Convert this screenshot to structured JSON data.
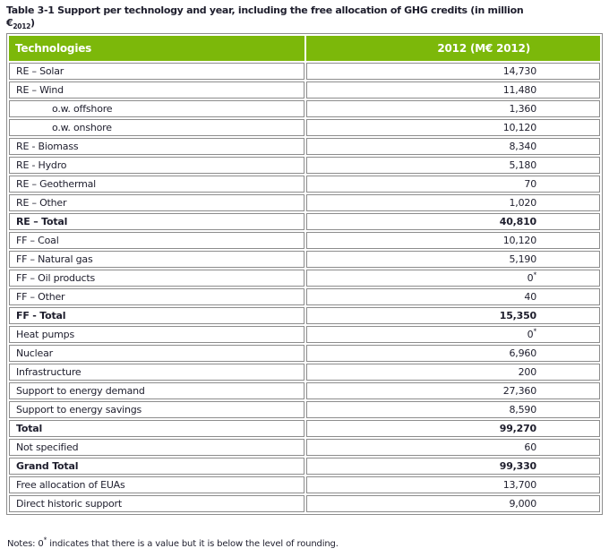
{
  "caption": {
    "line1": "Table 3-1 Support per technology and year, including the free allocation of GHG credits (in million",
    "euro": "€",
    "euro_subscript": "2012",
    "close_paren": ")"
  },
  "table": {
    "columns": [
      "Technologies",
      "2012 (M€ 2012)"
    ],
    "rows": [
      {
        "label": "RE – Solar",
        "value": "14,730"
      },
      {
        "label": "RE – Wind",
        "value": "11,480"
      },
      {
        "label": "o.w. offshore",
        "value": "1,360"
      },
      {
        "label": "o.w. onshore",
        "value": "10,120"
      },
      {
        "label": "RE - Biomass",
        "value": "8,340"
      },
      {
        "label": "RE - Hydro",
        "value": "5,180"
      },
      {
        "label": "RE – Geothermal",
        "value": "70"
      },
      {
        "label": "RE – Other",
        "value": "1,020"
      },
      {
        "label": "RE – Total",
        "value": "40,810"
      },
      {
        "label": "FF – Coal",
        "value": "10,120"
      },
      {
        "label": "FF – Natural gas",
        "value": "5,190"
      },
      {
        "label": "FF – Oil products",
        "value": "0",
        "sup": "*"
      },
      {
        "label": "FF – Other",
        "value": "40"
      },
      {
        "label": "FF - Total",
        "value": "15,350"
      },
      {
        "label": "Heat pumps",
        "value": "0",
        "sup": "*"
      },
      {
        "label": "Nuclear",
        "value": "6,960"
      },
      {
        "label": "Infrastructure",
        "value": "200"
      },
      {
        "label": "Support to energy demand",
        "value": "27,360"
      },
      {
        "label": "Support to energy savings",
        "value": "8,590"
      },
      {
        "label": "Total",
        "value": "99,270"
      },
      {
        "label": "Not specified",
        "value": "60"
      },
      {
        "label": "Grand Total",
        "value": "99,330"
      },
      {
        "label": "Free allocation of EUAs",
        "value": "13,700"
      },
      {
        "label": "Direct historic support",
        "value": "9,000"
      }
    ]
  },
  "notes": {
    "prefix": "Notes: 0",
    "sup": "*",
    "text": " indicates that there is a value but it is below the level of rounding."
  },
  "colors": {
    "header_green": "#7cb80a",
    "border_gray": "#8c8c8c",
    "text_dark": "#1e1e2d"
  }
}
